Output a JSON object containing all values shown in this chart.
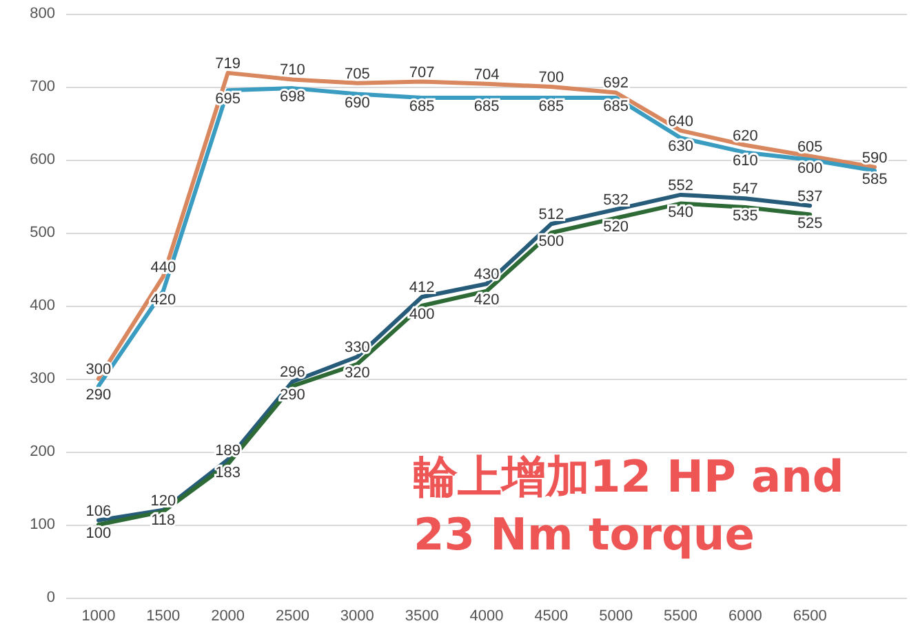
{
  "chart_data": {
    "type": "line",
    "categories": [
      "1000",
      "1500",
      "2000",
      "2500",
      "3000",
      "3500",
      "4000",
      "4500",
      "5000",
      "5500",
      "6000",
      "6500",
      null
    ],
    "series": [
      {
        "color": "#d9875e",
        "values": [
          300,
          440,
          719,
          710,
          705,
          707,
          704,
          700,
          692,
          640,
          620,
          605,
          590
        ]
      },
      {
        "color": "#3a9cc0",
        "values": [
          290,
          420,
          695,
          698,
          690,
          685,
          685,
          685,
          685,
          630,
          610,
          600,
          585
        ]
      },
      {
        "color": "#275b7a",
        "values": [
          106,
          120,
          189,
          296,
          330,
          412,
          430,
          512,
          532,
          552,
          547,
          537,
          null
        ]
      },
      {
        "color": "#2d6a35",
        "values": [
          100,
          118,
          183,
          290,
          320,
          400,
          420,
          500,
          520,
          540,
          535,
          525,
          null
        ]
      }
    ],
    "ylim": [
      0,
      800
    ],
    "yticks": [
      0,
      100,
      200,
      300,
      400,
      500,
      600,
      700,
      800
    ],
    "grid": "y",
    "data_labels": true,
    "marker": "none",
    "line_style": "solid",
    "annotations": [
      "輪上增加12 HP and 23 Nm torque"
    ]
  }
}
